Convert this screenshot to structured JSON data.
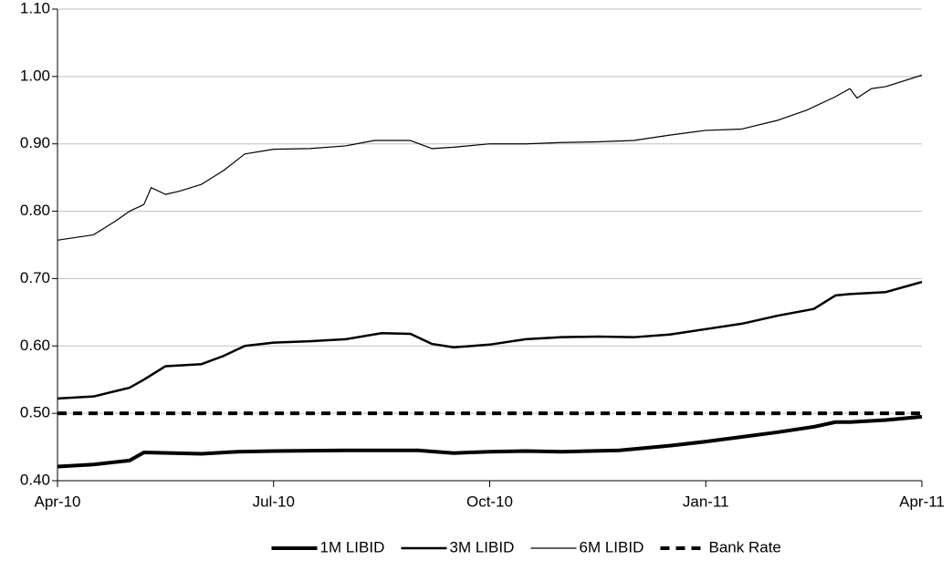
{
  "chart_data": {
    "type": "line",
    "xlim": [
      0,
      12
    ],
    "xticks": [
      {
        "value": 0,
        "label": "Apr-10"
      },
      {
        "value": 3,
        "label": "Jul-10"
      },
      {
        "value": 6,
        "label": "Oct-10"
      },
      {
        "value": 9,
        "label": "Jan-11"
      },
      {
        "value": 12,
        "label": "Apr-11"
      }
    ],
    "ylim": [
      0.4,
      1.1
    ],
    "yticks": [
      {
        "value": 0.4,
        "label": "0.40"
      },
      {
        "value": 0.5,
        "label": "0.50"
      },
      {
        "value": 0.6,
        "label": "0.60"
      },
      {
        "value": 0.7,
        "label": "0.70"
      },
      {
        "value": 0.8,
        "label": "0.80"
      },
      {
        "value": 0.9,
        "label": "0.90"
      },
      {
        "value": 1.0,
        "label": "1.00"
      },
      {
        "value": 1.1,
        "label": "1.10"
      }
    ],
    "grid": true,
    "legend": "bottom",
    "series": [
      {
        "name": "1M LIBID",
        "color": "#000000",
        "line_width": 4,
        "dash": false,
        "x": [
          0,
          0.5,
          1.0,
          1.2,
          2.0,
          2.5,
          3.0,
          4.0,
          5.0,
          5.5,
          6.0,
          6.5,
          7.0,
          7.8,
          8.5,
          9.0,
          9.5,
          10.0,
          10.5,
          10.8,
          11.0,
          11.5,
          12.0
        ],
        "values": [
          0.421,
          0.424,
          0.43,
          0.442,
          0.44,
          0.443,
          0.444,
          0.445,
          0.445,
          0.441,
          0.443,
          0.444,
          0.443,
          0.445,
          0.452,
          0.458,
          0.465,
          0.472,
          0.48,
          0.487,
          0.487,
          0.49,
          0.495
        ]
      },
      {
        "name": "3M LIBID",
        "color": "#000000",
        "line_width": 2.5,
        "dash": false,
        "x": [
          0,
          0.5,
          1.0,
          1.2,
          1.5,
          2.0,
          2.3,
          2.6,
          3.0,
          3.5,
          4.0,
          4.5,
          4.9,
          5.2,
          5.5,
          6.0,
          6.5,
          7.0,
          7.5,
          8.0,
          8.5,
          9.0,
          9.5,
          10.0,
          10.5,
          10.8,
          11.0,
          11.5,
          12.0
        ],
        "values": [
          0.522,
          0.525,
          0.538,
          0.55,
          0.57,
          0.573,
          0.585,
          0.6,
          0.605,
          0.607,
          0.61,
          0.619,
          0.618,
          0.603,
          0.598,
          0.602,
          0.61,
          0.613,
          0.614,
          0.613,
          0.617,
          0.625,
          0.633,
          0.645,
          0.655,
          0.675,
          0.677,
          0.68,
          0.695
        ]
      },
      {
        "name": "6M LIBID",
        "color": "#000000",
        "line_width": 1.2,
        "dash": false,
        "x": [
          0,
          0.5,
          0.8,
          1.0,
          1.2,
          1.3,
          1.5,
          1.7,
          2.0,
          2.3,
          2.6,
          3.0,
          3.5,
          4.0,
          4.4,
          4.9,
          5.2,
          5.5,
          6.0,
          6.5,
          7.0,
          7.5,
          8.0,
          8.5,
          9.0,
          9.5,
          10.0,
          10.4,
          10.8,
          11.0,
          11.1,
          11.3,
          11.5,
          12.0
        ],
        "values": [
          0.757,
          0.765,
          0.785,
          0.8,
          0.81,
          0.835,
          0.825,
          0.83,
          0.84,
          0.86,
          0.885,
          0.892,
          0.893,
          0.897,
          0.905,
          0.905,
          0.893,
          0.895,
          0.9,
          0.9,
          0.902,
          0.903,
          0.905,
          0.913,
          0.92,
          0.922,
          0.935,
          0.95,
          0.97,
          0.982,
          0.968,
          0.982,
          0.985,
          1.002
        ]
      },
      {
        "name": "Bank Rate",
        "color": "#000000",
        "line_width": 4,
        "dash": true,
        "x": [
          0,
          12
        ],
        "values": [
          0.5,
          0.5
        ]
      }
    ]
  }
}
